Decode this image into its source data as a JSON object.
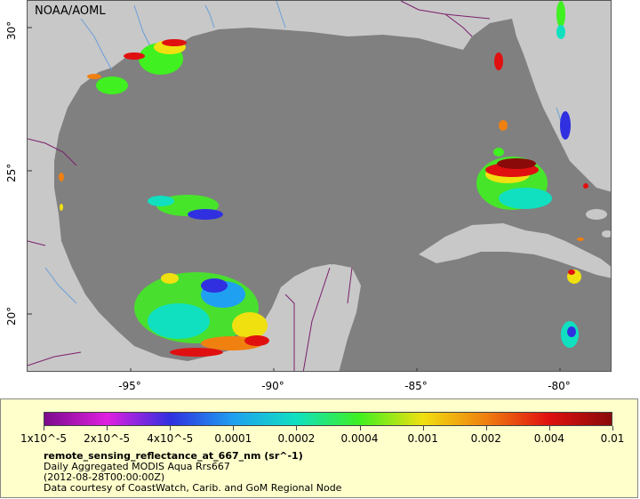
{
  "map": {
    "credit": "NOAA/AOML",
    "lat_ticks": [
      "30°",
      "25°",
      "20°"
    ],
    "lon_ticks": [
      "-95°",
      "-90°",
      "-85°",
      "-80°"
    ],
    "colors": {
      "ocean": "#808080",
      "land": "#c8c8c8",
      "rivers": "#6a9fd8",
      "borders": "#7a1f6a"
    }
  },
  "legend": {
    "colorbar_labels": [
      "1x10^-5",
      "2x10^-5",
      "4x10^-5",
      "0.0001",
      "0.0002",
      "0.0004",
      "0.001",
      "0.002",
      "0.004",
      "0.01"
    ],
    "variable": "remote_sensing_reflectance_at_667_nm (sr^-1)",
    "product": "Daily Aggregated MODIS Aqua Rrs667",
    "date": "(2012-08-28T00:00:00Z)",
    "source": "Data courtesy of CoastWatch, Carib. and GoM Regional Node",
    "colormap": [
      "#7a0a8c",
      "#e020e0",
      "#3030e0",
      "#20a0f0",
      "#10e0c0",
      "#40f020",
      "#f0e010",
      "#f08010",
      "#e01010",
      "#8a0a0a"
    ]
  }
}
